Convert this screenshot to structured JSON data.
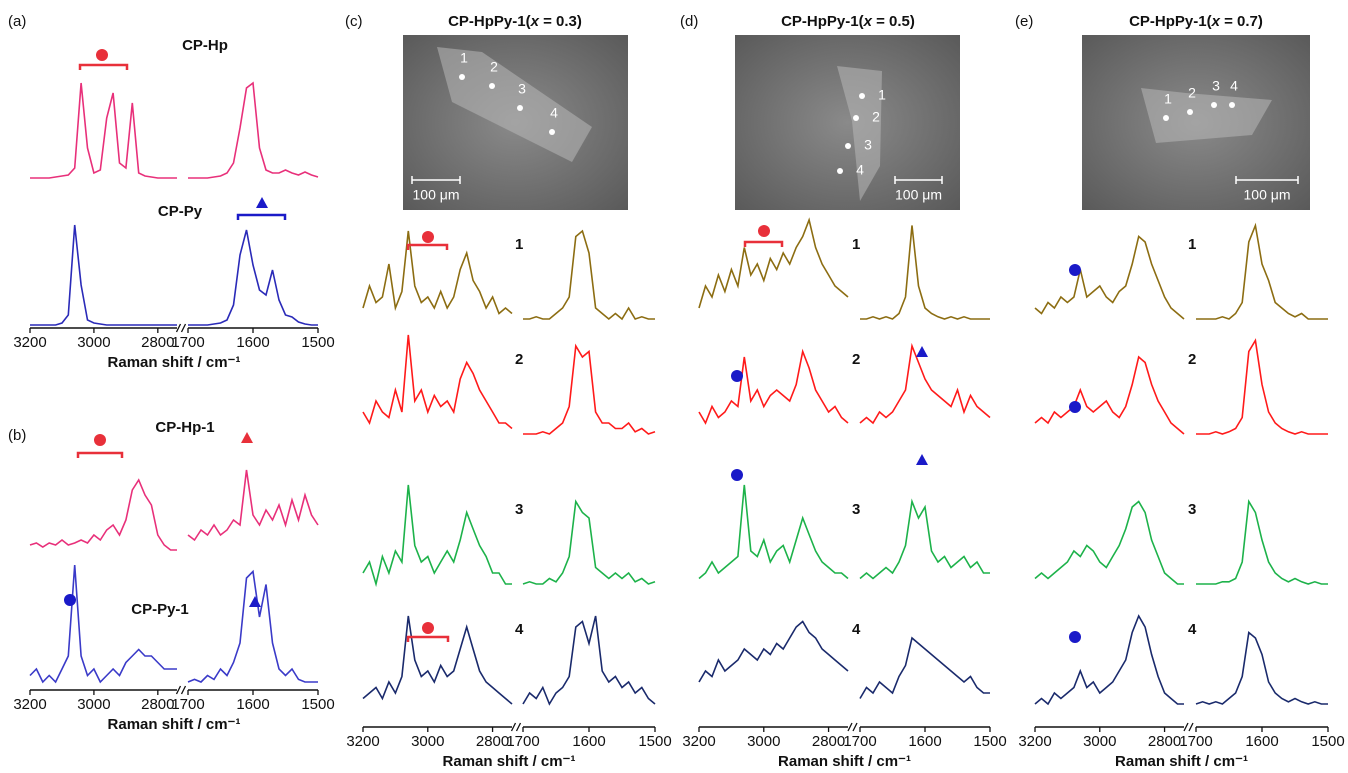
{
  "x_left": [
    3200,
    3180,
    3160,
    3140,
    3120,
    3100,
    3080,
    3060,
    3040,
    3020,
    3000,
    2980,
    2960,
    2940,
    2920,
    2900,
    2880,
    2860,
    2840,
    2820,
    2800,
    2780,
    2760,
    2740
  ],
  "x_right": [
    1700,
    1690,
    1680,
    1670,
    1660,
    1650,
    1640,
    1630,
    1620,
    1610,
    1600,
    1590,
    1580,
    1570,
    1560,
    1550,
    1540,
    1530,
    1520,
    1510,
    1500
  ],
  "xlim_left": [
    3200,
    2740
  ],
  "xlim_right": [
    1700,
    1500
  ],
  "panels": [
    {
      "label": "(a)",
      "axis_title": "Raman shift / cm⁻¹",
      "xticks_left": [
        3200,
        3000,
        2800
      ],
      "xticks_right": [
        1700,
        1600,
        1500
      ],
      "traces": [
        {
          "label": "CP-Hp",
          "color": "#e8307a",
          "left": [
            0,
            0,
            0,
            0,
            0.01,
            0.02,
            0.03,
            0.1,
            0.95,
            0.3,
            0.05,
            0.08,
            0.6,
            0.85,
            0.15,
            0.1,
            0.75,
            0.05,
            0.02,
            0.01,
            0,
            0,
            0,
            0
          ],
          "right": [
            0,
            0,
            0,
            0,
            0.01,
            0.02,
            0.05,
            0.15,
            0.5,
            0.9,
            0.95,
            0.3,
            0.08,
            0.05,
            0.05,
            0.08,
            0.05,
            0.03,
            0.06,
            0.03,
            0.01
          ]
        },
        {
          "label": "CP-Py",
          "color": "#2a2ab8",
          "left": [
            0,
            0,
            0,
            0,
            0,
            0.02,
            0.1,
            1.0,
            0.4,
            0.05,
            0.02,
            0.01,
            0,
            0,
            0,
            0,
            0,
            0,
            0,
            0,
            0,
            0,
            0,
            0
          ],
          "right": [
            0,
            0,
            0,
            0,
            0.01,
            0.02,
            0.05,
            0.2,
            0.7,
            0.95,
            0.6,
            0.35,
            0.3,
            0.55,
            0.25,
            0.1,
            0.08,
            0.03,
            0.01,
            0,
            0
          ]
        }
      ]
    },
    {
      "label": "(b)",
      "axis_title": "Raman shift / cm⁻¹",
      "xticks_left": [
        3200,
        3000,
        2800
      ],
      "xticks_right": [
        1700,
        1600,
        1500
      ],
      "traces": [
        {
          "label": "CP-Hp-1",
          "color": "#e8307a",
          "left": [
            0.1,
            0.12,
            0.08,
            0.12,
            0.1,
            0.15,
            0.1,
            0.12,
            0.15,
            0.12,
            0.2,
            0.15,
            0.25,
            0.3,
            0.2,
            0.35,
            0.65,
            0.75,
            0.6,
            0.5,
            0.2,
            0.1,
            0.05,
            0.05
          ],
          "right": [
            0.2,
            0.15,
            0.25,
            0.2,
            0.3,
            0.2,
            0.25,
            0.35,
            0.3,
            0.85,
            0.4,
            0.3,
            0.45,
            0.35,
            0.5,
            0.3,
            0.55,
            0.35,
            0.6,
            0.4,
            0.3
          ]
        },
        {
          "label": "CP-Py-1",
          "color": "#3a3ac8",
          "left": [
            0.15,
            0.2,
            0.1,
            0.15,
            0.1,
            0.2,
            0.3,
            1.0,
            0.3,
            0.15,
            0.2,
            0.1,
            0.15,
            0.2,
            0.15,
            0.25,
            0.3,
            0.35,
            0.3,
            0.3,
            0.25,
            0.2,
            0.2,
            0.2
          ],
          "right": [
            0.1,
            0.12,
            0.1,
            0.15,
            0.12,
            0.2,
            0.15,
            0.25,
            0.4,
            0.9,
            0.95,
            0.6,
            0.85,
            0.4,
            0.2,
            0.15,
            0.2,
            0.12,
            0.1,
            0.1,
            0.1
          ]
        }
      ]
    },
    {
      "label": "(c)",
      "title": {
        "main": "CP-HpPy-1(",
        "var": "x",
        "rest": " = 0.3)"
      },
      "image": {
        "points": [
          "1",
          "2",
          "3",
          "4"
        ],
        "scale": "100 μm"
      },
      "axis_title": "Raman shift / cm⁻¹",
      "xticks_left": [
        3200,
        3000,
        2800
      ],
      "xticks_right": [
        1700,
        1600,
        1500
      ],
      "traces": [
        {
          "label": "1",
          "color": "#8c6d12",
          "left": [
            0.2,
            0.4,
            0.25,
            0.3,
            0.6,
            0.2,
            0.35,
            0.9,
            0.4,
            0.25,
            0.3,
            0.2,
            0.35,
            0.2,
            0.3,
            0.55,
            0.7,
            0.45,
            0.35,
            0.2,
            0.3,
            0.15,
            0.2,
            0.15
          ],
          "right": [
            0.1,
            0.1,
            0.12,
            0.1,
            0.1,
            0.15,
            0.2,
            0.3,
            0.85,
            0.9,
            0.7,
            0.2,
            0.15,
            0.1,
            0.15,
            0.1,
            0.2,
            0.1,
            0.12,
            0.1,
            0.1
          ]
        },
        {
          "label": "2",
          "color": "#ff1a1a",
          "left": [
            0.3,
            0.2,
            0.4,
            0.3,
            0.25,
            0.5,
            0.3,
            1.0,
            0.4,
            0.5,
            0.3,
            0.45,
            0.35,
            0.4,
            0.3,
            0.6,
            0.75,
            0.65,
            0.5,
            0.4,
            0.3,
            0.2,
            0.2,
            0.15
          ],
          "right": [
            0.1,
            0.1,
            0.1,
            0.12,
            0.1,
            0.15,
            0.2,
            0.35,
            0.9,
            0.8,
            0.85,
            0.3,
            0.2,
            0.2,
            0.15,
            0.15,
            0.2,
            0.12,
            0.15,
            0.1,
            0.12
          ]
        },
        {
          "label": "3",
          "color": "#1db24a",
          "left": [
            0.2,
            0.3,
            0.1,
            0.35,
            0.2,
            0.4,
            0.3,
            1.0,
            0.45,
            0.3,
            0.35,
            0.2,
            0.3,
            0.4,
            0.3,
            0.5,
            0.75,
            0.6,
            0.45,
            0.35,
            0.2,
            0.2,
            0.1,
            0.1
          ],
          "right": [
            0.1,
            0.12,
            0.1,
            0.1,
            0.15,
            0.12,
            0.2,
            0.35,
            0.85,
            0.75,
            0.7,
            0.25,
            0.2,
            0.15,
            0.2,
            0.15,
            0.2,
            0.12,
            0.15,
            0.1,
            0.12
          ]
        },
        {
          "label": "4",
          "color": "#1a2a6c",
          "left": [
            0.15,
            0.2,
            0.25,
            0.15,
            0.3,
            0.2,
            0.35,
            0.9,
            0.5,
            0.35,
            0.4,
            0.3,
            0.45,
            0.35,
            0.4,
            0.6,
            0.8,
            0.6,
            0.4,
            0.3,
            0.25,
            0.2,
            0.15,
            0.1
          ],
          "right": [
            0.1,
            0.2,
            0.15,
            0.25,
            0.1,
            0.2,
            0.25,
            0.35,
            0.8,
            0.85,
            0.65,
            0.9,
            0.4,
            0.3,
            0.35,
            0.25,
            0.3,
            0.2,
            0.25,
            0.15,
            0.1
          ]
        }
      ]
    },
    {
      "label": "(d)",
      "title": {
        "main": "CP-HpPy-1(",
        "var": "x",
        "rest": " = 0.5)"
      },
      "image": {
        "points": [
          "1",
          "2",
          "3",
          "4"
        ],
        "scale": "100 μm"
      },
      "axis_title": "Raman shift / cm⁻¹",
      "xticks_left": [
        3200,
        3000,
        2800
      ],
      "xticks_right": [
        1700,
        1600,
        1500
      ],
      "traces": [
        {
          "label": "1",
          "color": "#8c6d12",
          "left": [
            0.2,
            0.4,
            0.3,
            0.5,
            0.35,
            0.55,
            0.4,
            0.75,
            0.5,
            0.6,
            0.45,
            0.65,
            0.55,
            0.7,
            0.6,
            0.75,
            0.85,
            1.0,
            0.75,
            0.6,
            0.5,
            0.4,
            0.35,
            0.3
          ],
          "right": [
            0.1,
            0.1,
            0.12,
            0.1,
            0.12,
            0.1,
            0.15,
            0.3,
            0.95,
            0.4,
            0.2,
            0.15,
            0.12,
            0.1,
            0.12,
            0.1,
            0.12,
            0.1,
            0.1,
            0.1,
            0.1
          ]
        },
        {
          "label": "2",
          "color": "#ff1a1a",
          "left": [
            0.3,
            0.2,
            0.35,
            0.25,
            0.3,
            0.4,
            0.35,
            0.8,
            0.4,
            0.5,
            0.35,
            0.45,
            0.5,
            0.45,
            0.4,
            0.55,
            0.85,
            0.7,
            0.5,
            0.4,
            0.3,
            0.35,
            0.25,
            0.2
          ],
          "right": [
            0.2,
            0.25,
            0.2,
            0.3,
            0.25,
            0.3,
            0.4,
            0.5,
            0.9,
            0.75,
            0.6,
            0.5,
            0.45,
            0.4,
            0.35,
            0.5,
            0.3,
            0.45,
            0.35,
            0.3,
            0.25
          ]
        },
        {
          "label": "3",
          "color": "#1db24a",
          "left": [
            0.15,
            0.2,
            0.3,
            0.2,
            0.25,
            0.3,
            0.35,
            1.0,
            0.4,
            0.35,
            0.5,
            0.3,
            0.4,
            0.45,
            0.3,
            0.5,
            0.7,
            0.55,
            0.4,
            0.3,
            0.25,
            0.2,
            0.2,
            0.15
          ],
          "right": [
            0.15,
            0.2,
            0.15,
            0.2,
            0.25,
            0.2,
            0.3,
            0.45,
            0.85,
            0.7,
            0.8,
            0.4,
            0.3,
            0.35,
            0.25,
            0.3,
            0.35,
            0.25,
            0.3,
            0.2,
            0.2
          ]
        },
        {
          "label": "4",
          "color": "#1a2a6c",
          "left": [
            0.3,
            0.4,
            0.35,
            0.5,
            0.4,
            0.45,
            0.5,
            0.6,
            0.55,
            0.5,
            0.6,
            0.55,
            0.65,
            0.6,
            0.7,
            0.8,
            0.85,
            0.75,
            0.7,
            0.6,
            0.55,
            0.5,
            0.45,
            0.4
          ],
          "right": [
            0.15,
            0.25,
            0.2,
            0.3,
            0.25,
            0.2,
            0.35,
            0.45,
            0.7,
            0.65,
            0.6,
            0.55,
            0.5,
            0.45,
            0.4,
            0.35,
            0.3,
            0.35,
            0.25,
            0.2,
            0.2
          ]
        }
      ]
    },
    {
      "label": "(e)",
      "title": {
        "main": "CP-HpPy-1(",
        "var": "x",
        "rest": " = 0.7)"
      },
      "image": {
        "points": [
          "1",
          "2",
          "3",
          "4"
        ],
        "scale": "100 μm"
      },
      "axis_title": "Raman shift / cm⁻¹",
      "xticks_left": [
        3200,
        3000,
        2800
      ],
      "xticks_right": [
        1700,
        1600,
        1500
      ],
      "traces": [
        {
          "label": "1",
          "color": "#8c6d12",
          "left": [
            0.2,
            0.15,
            0.25,
            0.2,
            0.3,
            0.25,
            0.3,
            0.55,
            0.3,
            0.35,
            0.4,
            0.3,
            0.25,
            0.35,
            0.4,
            0.6,
            0.85,
            0.8,
            0.6,
            0.45,
            0.3,
            0.2,
            0.15,
            0.1
          ],
          "right": [
            0.1,
            0.1,
            0.1,
            0.1,
            0.12,
            0.1,
            0.15,
            0.25,
            0.8,
            0.95,
            0.6,
            0.45,
            0.25,
            0.2,
            0.15,
            0.12,
            0.15,
            0.1,
            0.1,
            0.1,
            0.1
          ]
        },
        {
          "label": "2",
          "color": "#ff1a1a",
          "left": [
            0.2,
            0.25,
            0.2,
            0.3,
            0.25,
            0.3,
            0.35,
            0.5,
            0.35,
            0.3,
            0.35,
            0.4,
            0.3,
            0.25,
            0.35,
            0.55,
            0.8,
            0.75,
            0.55,
            0.4,
            0.3,
            0.2,
            0.15,
            0.1
          ],
          "right": [
            0.1,
            0.1,
            0.1,
            0.12,
            0.1,
            0.12,
            0.15,
            0.25,
            0.85,
            0.95,
            0.55,
            0.3,
            0.2,
            0.15,
            0.12,
            0.1,
            0.12,
            0.1,
            0.1,
            0.1,
            0.1
          ]
        },
        {
          "label": "3",
          "color": "#1db24a",
          "left": [
            0.15,
            0.2,
            0.15,
            0.2,
            0.25,
            0.3,
            0.4,
            0.35,
            0.45,
            0.4,
            0.3,
            0.25,
            0.35,
            0.45,
            0.6,
            0.8,
            0.85,
            0.75,
            0.5,
            0.35,
            0.2,
            0.15,
            0.1,
            0.1
          ],
          "right": [
            0.1,
            0.1,
            0.1,
            0.1,
            0.12,
            0.12,
            0.15,
            0.3,
            0.85,
            0.75,
            0.5,
            0.3,
            0.2,
            0.15,
            0.12,
            0.15,
            0.12,
            0.1,
            0.12,
            0.1,
            0.1
          ]
        },
        {
          "label": "4",
          "color": "#1a2a6c",
          "left": [
            0.1,
            0.15,
            0.1,
            0.2,
            0.15,
            0.2,
            0.25,
            0.4,
            0.25,
            0.3,
            0.2,
            0.25,
            0.3,
            0.4,
            0.5,
            0.75,
            0.9,
            0.8,
            0.55,
            0.35,
            0.2,
            0.15,
            0.1,
            0.1
          ],
          "right": [
            0.1,
            0.12,
            0.1,
            0.12,
            0.1,
            0.15,
            0.2,
            0.35,
            0.75,
            0.7,
            0.55,
            0.3,
            0.2,
            0.15,
            0.12,
            0.15,
            0.12,
            0.1,
            0.12,
            0.1,
            0.1
          ]
        }
      ]
    }
  ]
}
